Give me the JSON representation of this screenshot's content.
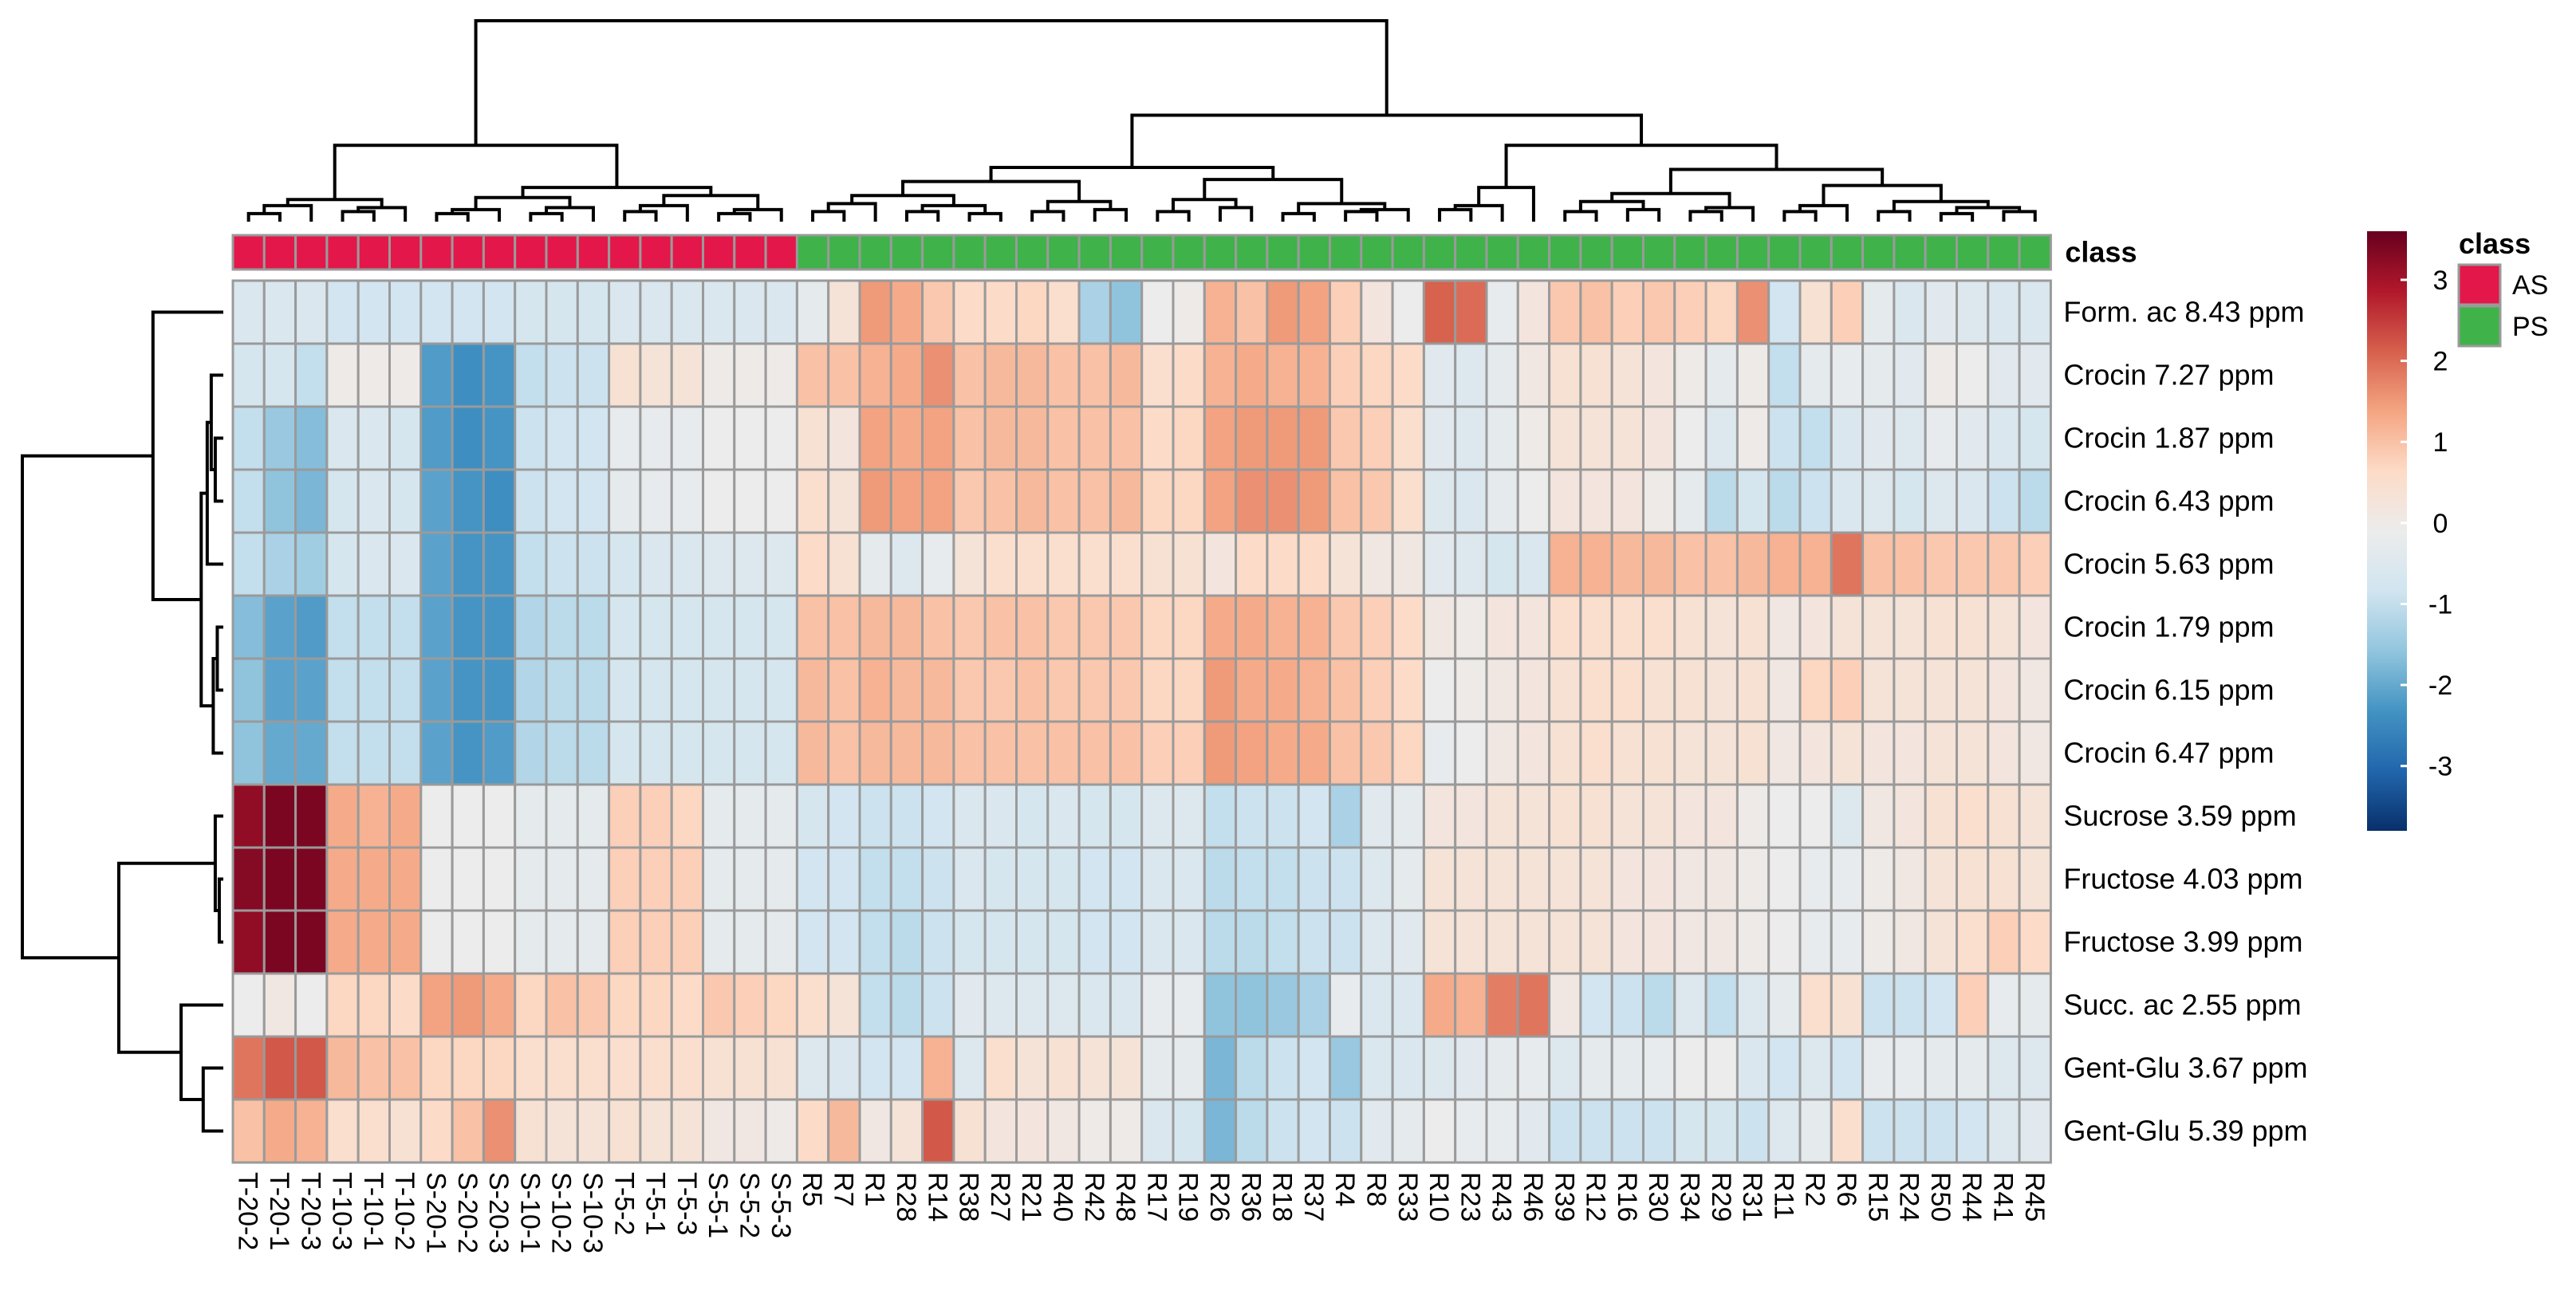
{
  "chart_data": {
    "type": "heatmap",
    "title": "",
    "annotation_title": "class",
    "annotation_legend": {
      "title": "class",
      "entries": [
        {
          "label": "AS",
          "color": "#e3174a"
        },
        {
          "label": "PS",
          "color": "#3fb24a"
        }
      ]
    },
    "color_scale": {
      "range": [
        -3.8,
        3.6
      ],
      "ticks": [
        "3",
        "2",
        "1",
        "0",
        "-1",
        "-2",
        "-3"
      ],
      "tick_values": [
        3,
        2,
        1,
        0,
        -1,
        -2,
        -3
      ],
      "colors": [
        "#08306b",
        "#2166ac",
        "#4393c3",
        "#92c5de",
        "#d1e5f0",
        "#ececec",
        "#fddbc7",
        "#f4a582",
        "#d6604d",
        "#b2182b",
        "#67001f"
      ]
    },
    "columns": [
      "T-20-2",
      "T-20-1",
      "T-20-3",
      "T-10-3",
      "T-10-1",
      "T-10-2",
      "S-20-1",
      "S-20-2",
      "S-20-3",
      "S-10-1",
      "S-10-2",
      "S-10-3",
      "T-5-2",
      "T-5-1",
      "T-5-3",
      "S-5-1",
      "S-5-2",
      "S-5-3",
      "R5",
      "R7",
      "R1",
      "R28",
      "R14",
      "R38",
      "R27",
      "R21",
      "R40",
      "R42",
      "R48",
      "R17",
      "R19",
      "R26",
      "R36",
      "R18",
      "R37",
      "R4",
      "R8",
      "R33",
      "R10",
      "R23",
      "R43",
      "R46",
      "R39",
      "R12",
      "R16",
      "R30",
      "R34",
      "R29",
      "R31",
      "R11",
      "R2",
      "R6",
      "R15",
      "R24",
      "R50",
      "R44",
      "R41",
      "R45"
    ],
    "column_class": [
      "AS",
      "AS",
      "AS",
      "AS",
      "AS",
      "AS",
      "AS",
      "AS",
      "AS",
      "AS",
      "AS",
      "AS",
      "AS",
      "AS",
      "AS",
      "AS",
      "AS",
      "AS",
      "PS",
      "PS",
      "PS",
      "PS",
      "PS",
      "PS",
      "PS",
      "PS",
      "PS",
      "PS",
      "PS",
      "PS",
      "PS",
      "PS",
      "PS",
      "PS",
      "PS",
      "PS",
      "PS",
      "PS",
      "PS",
      "PS",
      "PS",
      "PS",
      "PS",
      "PS",
      "PS",
      "PS",
      "PS",
      "PS",
      "PS",
      "PS",
      "PS",
      "PS",
      "PS",
      "PS",
      "PS",
      "PS",
      "PS",
      "PS"
    ],
    "rows": [
      "Form. ac 8.43 ppm",
      "Crocin 7.27 ppm",
      "Crocin 1.87 ppm",
      "Crocin 6.43 ppm",
      "Crocin 5.63 ppm",
      "Crocin 1.79 ppm",
      "Crocin 6.15 ppm",
      "Crocin 6.47 ppm",
      "Sucrose 3.59 ppm",
      "Fructose 4.03 ppm",
      "Fructose 3.99 ppm",
      "Succ. ac 2.55 ppm",
      "Gent-Glu 3.67 ppm",
      "Gent-Glu 5.39 ppm"
    ],
    "values": [
      [
        -0.6,
        -0.6,
        -0.6,
        -0.8,
        -0.8,
        -0.8,
        -0.8,
        -0.8,
        -0.8,
        -0.7,
        -0.7,
        -0.7,
        -0.6,
        -0.6,
        -0.6,
        -0.6,
        -0.6,
        -0.6,
        -0.3,
        0.3,
        1.5,
        1.3,
        0.9,
        0.6,
        0.6,
        0.7,
        0.5,
        -1.3,
        -1.6,
        -0.1,
        0.0,
        1.2,
        1.0,
        1.5,
        1.4,
        0.8,
        0.2,
        -0.1,
        2.1,
        2.0,
        -0.2,
        0.2,
        0.9,
        1.0,
        0.8,
        0.9,
        0.8,
        0.7,
        1.6,
        -0.8,
        0.4,
        0.8,
        -0.3,
        -0.6,
        -0.4,
        -0.5,
        -0.6,
        -0.6
      ],
      [
        -0.7,
        -0.7,
        -1.0,
        0.0,
        0.0,
        0.0,
        -2.2,
        -2.4,
        -2.3,
        -1.0,
        -0.9,
        -0.9,
        0.4,
        0.3,
        0.3,
        0.0,
        0.0,
        0.0,
        1.0,
        1.0,
        1.2,
        1.3,
        1.6,
        1.0,
        1.1,
        1.1,
        1.0,
        1.0,
        1.1,
        0.5,
        0.6,
        1.2,
        1.3,
        1.2,
        1.2,
        0.8,
        0.7,
        0.6,
        -0.4,
        -0.5,
        -0.3,
        0.1,
        0.4,
        0.4,
        0.3,
        0.2,
        0.0,
        -0.3,
        0.0,
        -1.0,
        -0.3,
        -0.2,
        -0.3,
        -0.4,
        0.0,
        -0.1,
        -0.4,
        -0.4
      ],
      [
        -1.0,
        -1.5,
        -1.7,
        -0.6,
        -0.6,
        -0.7,
        -2.2,
        -2.4,
        -2.3,
        -0.9,
        -0.8,
        -0.8,
        -0.2,
        -0.2,
        -0.2,
        -0.1,
        -0.1,
        -0.1,
        0.4,
        0.2,
        1.4,
        1.3,
        1.4,
        1.0,
        1.1,
        1.1,
        1.0,
        1.0,
        1.0,
        0.6,
        0.7,
        1.4,
        1.5,
        1.5,
        1.5,
        0.9,
        0.8,
        0.5,
        -0.4,
        -0.5,
        -0.3,
        0.0,
        0.3,
        0.3,
        0.3,
        0.2,
        -0.1,
        -0.5,
        0.0,
        -0.9,
        -1.0,
        -0.6,
        -0.4,
        -0.5,
        -0.2,
        -0.4,
        -0.6,
        -0.7
      ],
      [
        -1.0,
        -1.6,
        -1.8,
        -0.7,
        -0.6,
        -0.7,
        -2.1,
        -2.3,
        -2.4,
        -0.9,
        -0.8,
        -0.8,
        -0.3,
        -0.2,
        -0.2,
        -0.1,
        -0.1,
        -0.1,
        0.5,
        0.3,
        1.5,
        1.4,
        1.4,
        0.9,
        1.0,
        1.1,
        1.0,
        1.0,
        1.1,
        0.7,
        0.7,
        1.4,
        1.6,
        1.6,
        1.5,
        1.0,
        0.9,
        0.5,
        -0.5,
        -0.6,
        -0.3,
        -0.1,
        0.2,
        0.2,
        0.2,
        0.0,
        -0.3,
        -1.1,
        -0.7,
        -1.1,
        -0.9,
        -0.6,
        -0.5,
        -0.7,
        -0.5,
        -0.6,
        -0.9,
        -1.1
      ],
      [
        -1.0,
        -1.3,
        -1.4,
        -0.7,
        -0.6,
        -0.6,
        -2.1,
        -2.3,
        -2.3,
        -1.0,
        -0.9,
        -0.9,
        -0.7,
        -0.6,
        -0.6,
        -0.5,
        -0.5,
        -0.5,
        0.6,
        0.4,
        -0.3,
        -0.5,
        -0.2,
        0.3,
        0.5,
        0.5,
        0.5,
        0.5,
        0.5,
        0.4,
        0.4,
        0.2,
        0.6,
        0.6,
        0.6,
        0.3,
        0.1,
        0.1,
        -0.4,
        -0.5,
        -0.7,
        -0.6,
        1.2,
        1.2,
        1.1,
        1.1,
        1.0,
        1.0,
        1.1,
        1.2,
        1.2,
        1.9,
        1.0,
        1.0,
        0.9,
        0.9,
        0.9,
        0.8
      ],
      [
        -1.7,
        -2.1,
        -2.2,
        -1.0,
        -1.0,
        -1.0,
        -2.1,
        -2.3,
        -2.3,
        -1.2,
        -1.1,
        -1.1,
        -0.7,
        -0.7,
        -0.7,
        -0.7,
        -0.7,
        -0.7,
        1.0,
        1.0,
        1.1,
        1.1,
        1.0,
        0.9,
        1.0,
        1.0,
        0.9,
        0.9,
        0.9,
        0.7,
        0.7,
        1.3,
        1.3,
        1.2,
        1.2,
        0.9,
        0.8,
        0.6,
        0.1,
        0.0,
        0.2,
        0.2,
        0.5,
        0.5,
        0.5,
        0.5,
        0.4,
        0.3,
        0.4,
        0.1,
        0.2,
        0.3,
        0.3,
        0.3,
        0.4,
        0.4,
        0.3,
        0.2
      ],
      [
        -1.6,
        -2.1,
        -2.1,
        -1.0,
        -1.0,
        -1.0,
        -2.1,
        -2.3,
        -2.3,
        -1.2,
        -1.1,
        -1.1,
        -0.7,
        -0.7,
        -0.7,
        -0.7,
        -0.7,
        -0.7,
        1.1,
        1.0,
        1.2,
        1.1,
        1.1,
        0.9,
        0.9,
        1.0,
        0.9,
        0.9,
        0.9,
        0.7,
        0.7,
        1.5,
        1.3,
        1.3,
        1.2,
        1.0,
        0.8,
        0.6,
        -0.1,
        0.0,
        0.1,
        0.2,
        0.4,
        0.5,
        0.5,
        0.4,
        0.4,
        0.3,
        0.4,
        0.1,
        0.7,
        0.8,
        0.3,
        0.3,
        0.3,
        0.3,
        0.2,
        0.1
      ],
      [
        -1.6,
        -2.0,
        -2.0,
        -1.0,
        -1.0,
        -1.0,
        -2.1,
        -2.3,
        -2.2,
        -1.2,
        -1.1,
        -1.1,
        -0.7,
        -0.7,
        -0.7,
        -0.7,
        -0.7,
        -0.7,
        1.1,
        1.0,
        1.1,
        1.1,
        1.1,
        1.0,
        1.0,
        1.0,
        1.0,
        1.0,
        1.0,
        0.8,
        0.8,
        1.5,
        1.4,
        1.3,
        1.3,
        1.0,
        0.9,
        0.7,
        -0.2,
        -0.1,
        0.1,
        0.2,
        0.4,
        0.5,
        0.4,
        0.4,
        0.3,
        0.3,
        0.4,
        0.1,
        0.2,
        0.3,
        0.2,
        0.2,
        0.3,
        0.3,
        0.2,
        0.1
      ],
      [
        3.2,
        3.4,
        3.4,
        1.3,
        1.2,
        1.3,
        -0.1,
        -0.1,
        -0.1,
        -0.3,
        -0.3,
        -0.3,
        0.8,
        0.8,
        0.7,
        -0.3,
        -0.3,
        -0.3,
        -0.7,
        -0.8,
        -0.9,
        -0.9,
        -0.8,
        -0.6,
        -0.6,
        -0.7,
        -0.6,
        -0.7,
        -0.7,
        -0.5,
        -0.5,
        -1.0,
        -0.9,
        -0.9,
        -0.8,
        -1.3,
        -0.4,
        -0.3,
        0.2,
        0.2,
        0.3,
        0.3,
        0.4,
        0.4,
        0.3,
        0.3,
        0.2,
        0.2,
        0.0,
        -0.1,
        -0.1,
        -0.5,
        0.1,
        0.2,
        0.4,
        0.5,
        0.4,
        0.3
      ],
      [
        3.3,
        3.4,
        3.4,
        1.3,
        1.3,
        1.3,
        -0.1,
        -0.1,
        -0.1,
        -0.3,
        -0.3,
        -0.3,
        0.8,
        0.8,
        0.8,
        -0.3,
        -0.3,
        -0.3,
        -0.8,
        -0.8,
        -1.0,
        -1.0,
        -0.9,
        -0.6,
        -0.7,
        -0.7,
        -0.7,
        -0.8,
        -0.8,
        -0.6,
        -0.6,
        -1.1,
        -1.0,
        -1.0,
        -0.9,
        -0.9,
        -0.5,
        -0.3,
        0.3,
        0.3,
        0.3,
        0.3,
        0.3,
        0.3,
        0.2,
        0.2,
        0.1,
        0.1,
        0.0,
        -0.1,
        -0.2,
        -0.2,
        0.0,
        0.1,
        0.3,
        0.4,
        0.4,
        0.3
      ],
      [
        3.2,
        3.4,
        3.4,
        1.3,
        1.3,
        1.3,
        -0.1,
        -0.1,
        -0.1,
        -0.3,
        -0.3,
        -0.3,
        0.8,
        0.8,
        0.8,
        -0.3,
        -0.3,
        -0.3,
        -0.8,
        -0.8,
        -1.0,
        -1.1,
        -0.9,
        -0.7,
        -0.7,
        -0.7,
        -0.7,
        -0.8,
        -0.8,
        -0.6,
        -0.6,
        -1.1,
        -1.1,
        -1.0,
        -0.9,
        -0.9,
        -0.5,
        -0.4,
        0.3,
        0.3,
        0.3,
        0.3,
        0.3,
        0.3,
        0.2,
        0.2,
        0.1,
        0.1,
        0.0,
        -0.1,
        -0.2,
        -0.2,
        0.0,
        0.1,
        0.3,
        0.5,
        0.8,
        0.6
      ],
      [
        -0.1,
        0.1,
        -0.1,
        0.7,
        0.7,
        0.6,
        1.4,
        1.5,
        1.3,
        0.7,
        1.0,
        0.9,
        0.7,
        0.7,
        0.6,
        0.9,
        0.8,
        0.7,
        0.5,
        0.3,
        -1.0,
        -1.1,
        -0.9,
        -0.4,
        -0.5,
        -0.5,
        -0.5,
        -0.6,
        -0.6,
        -0.2,
        -0.2,
        -1.6,
        -1.6,
        -1.5,
        -1.3,
        -0.2,
        -0.6,
        -0.6,
        1.3,
        1.2,
        1.8,
        1.9,
        0.1,
        -0.8,
        -0.9,
        -1.1,
        -0.5,
        -1.0,
        -0.5,
        -0.3,
        0.5,
        0.4,
        -0.9,
        -0.9,
        -0.8,
        0.8,
        -0.2,
        -0.3
      ],
      [
        1.9,
        2.2,
        2.2,
        1.1,
        1.0,
        1.0,
        0.7,
        0.7,
        0.7,
        0.5,
        0.5,
        0.5,
        0.5,
        0.5,
        0.5,
        0.4,
        0.4,
        0.4,
        -0.5,
        -0.6,
        -0.8,
        -0.8,
        1.2,
        -0.5,
        0.5,
        0.3,
        0.4,
        0.3,
        0.3,
        -0.3,
        -0.3,
        -1.8,
        -1.1,
        -0.9,
        -0.8,
        -1.5,
        -0.6,
        -0.6,
        -0.5,
        -0.4,
        -0.3,
        -0.2,
        -0.5,
        -0.3,
        -0.3,
        -0.2,
        -0.1,
        -0.1,
        -0.6,
        -0.8,
        -0.5,
        -0.8,
        -0.2,
        -0.2,
        -0.3,
        -0.3,
        -0.5,
        -0.5
      ],
      [
        1.0,
        1.3,
        1.2,
        0.5,
        0.5,
        0.4,
        0.6,
        1.0,
        1.6,
        0.4,
        0.3,
        0.3,
        0.4,
        0.3,
        0.3,
        0.1,
        0.1,
        0.0,
        0.6,
        1.1,
        0.1,
        0.3,
        2.2,
        0.4,
        0.2,
        0.2,
        0.1,
        0.0,
        0.0,
        -0.6,
        -0.7,
        -1.8,
        -1.1,
        -0.9,
        -0.8,
        -0.9,
        -0.4,
        -0.3,
        -0.1,
        -0.2,
        -0.2,
        -0.4,
        -0.9,
        -0.9,
        -0.9,
        -0.9,
        -0.7,
        -0.7,
        -0.9,
        -0.5,
        -0.3,
        0.5,
        -0.9,
        -0.9,
        -0.9,
        -0.8,
        -0.5,
        -0.4
      ]
    ]
  }
}
